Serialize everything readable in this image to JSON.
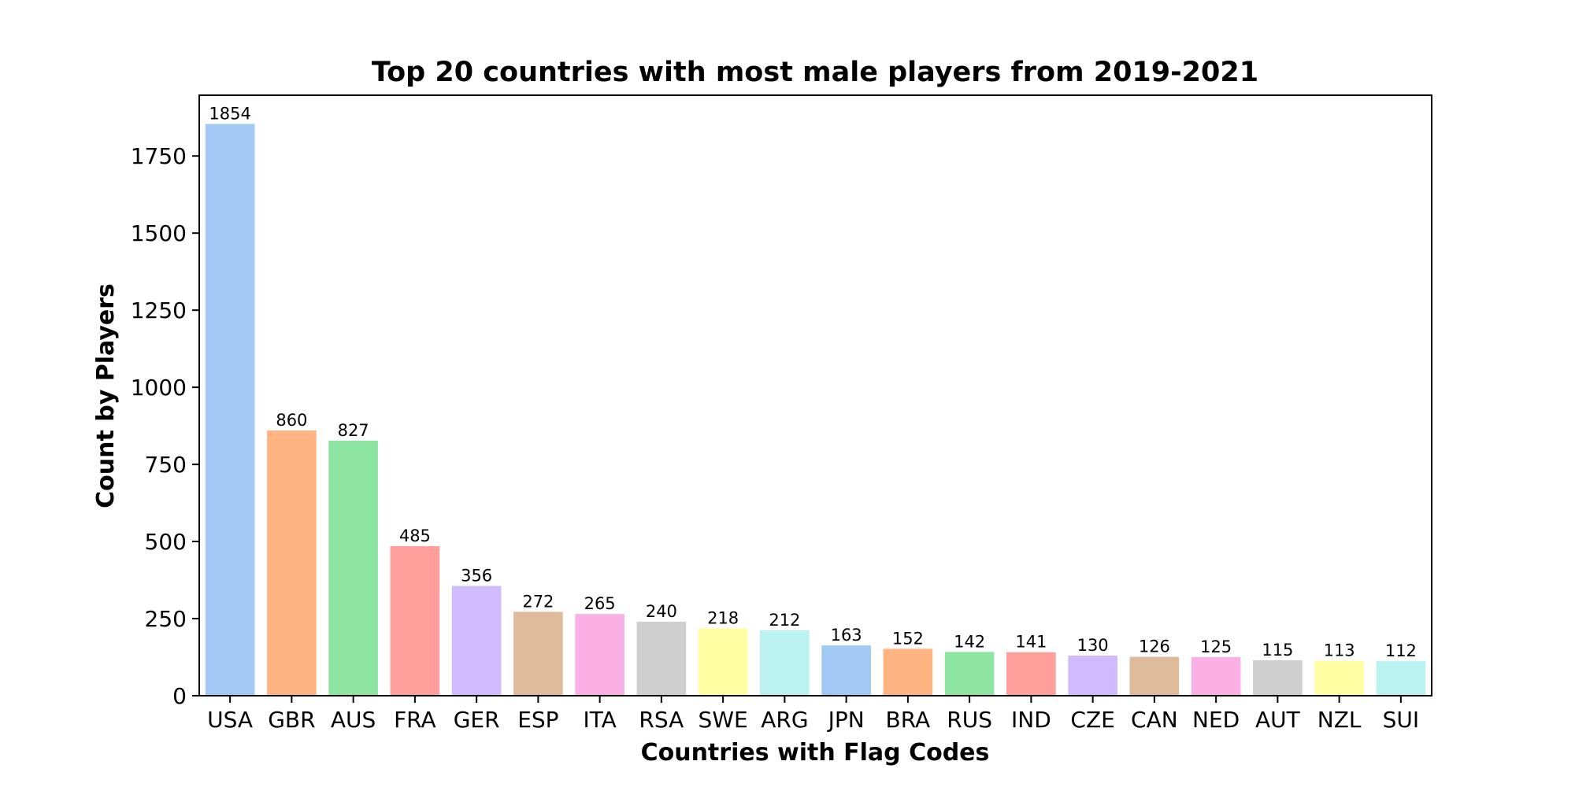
{
  "chart_data": {
    "type": "bar",
    "title": "Top 20 countries with most male players from 2019-2021",
    "xlabel": "Countries with Flag Codes",
    "ylabel": "Count by Players",
    "categories": [
      "USA",
      "GBR",
      "AUS",
      "FRA",
      "GER",
      "ESP",
      "ITA",
      "RSA",
      "SWE",
      "ARG",
      "JPN",
      "BRA",
      "RUS",
      "IND",
      "CZE",
      "CAN",
      "NED",
      "AUT",
      "NZL",
      "SUI"
    ],
    "values": [
      1854,
      860,
      827,
      485,
      356,
      272,
      265,
      240,
      218,
      212,
      163,
      152,
      142,
      141,
      130,
      126,
      125,
      115,
      113,
      112
    ],
    "data_labels": [
      "1854",
      "860",
      "827",
      "485",
      "356",
      "272",
      "265",
      "240",
      "218",
      "212",
      "163",
      "152",
      "142",
      "141",
      "130",
      "126",
      "125",
      "115",
      "113",
      "112"
    ],
    "yticks": [
      0,
      250,
      500,
      750,
      1000,
      1250,
      1500,
      1750
    ],
    "ylim": [
      0,
      1947
    ],
    "grid": false,
    "legend": "none",
    "colors": [
      "#a1c9f4",
      "#ffb482",
      "#8de5a1",
      "#ff9f9b",
      "#d0bbff",
      "#debb9b",
      "#fab0e4",
      "#cfcfcf",
      "#fffea3",
      "#b9f2f0",
      "#a1c9f4",
      "#ffb482",
      "#8de5a1",
      "#ff9f9b",
      "#d0bbff",
      "#debb9b",
      "#fab0e4",
      "#cfcfcf",
      "#fffea3",
      "#b9f2f0"
    ]
  }
}
